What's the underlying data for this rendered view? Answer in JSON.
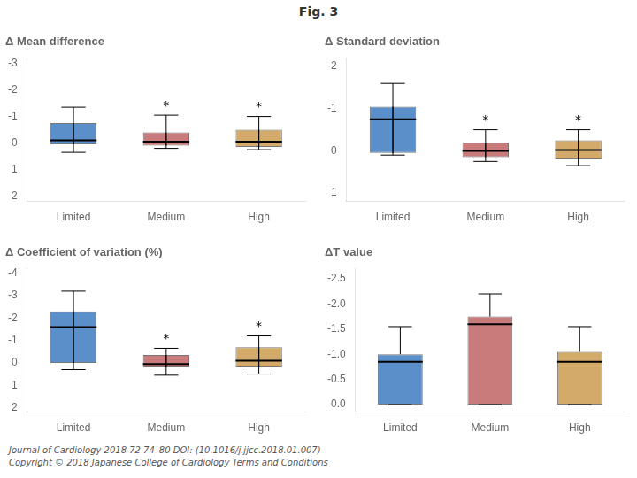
{
  "title": "Fig. 3",
  "footer": [
    "Journal of Cardiology 2018 72 74–80 DOI: (10.1016/j.jjcc.2018.01.007)",
    "Copyright © 2018 Japanese College of Cardiology Terms and Conditions"
  ],
  "chart_data": [
    {
      "type": "box",
      "title": "Δ Mean difference",
      "categories": [
        "Limited",
        "Medium",
        "High"
      ],
      "colors": [
        "#5b8fc9",
        "#c97b7b",
        "#d4aa6a"
      ],
      "q1": [
        -0.75,
        -0.4,
        -0.5
      ],
      "q3": [
        0.05,
        0.1,
        0.15
      ],
      "median": [
        -0.1,
        -0.05,
        -0.05
      ],
      "whisker_low": [
        0.35,
        0.2,
        0.25
      ],
      "whisker_high": [
        -1.35,
        -1.05,
        -1.0
      ],
      "annotations": [
        {
          "category": "Medium",
          "text": "*"
        },
        {
          "category": "High",
          "text": "*"
        }
      ],
      "ylim": [
        2.2,
        -3.2
      ],
      "yticks": [
        2,
        1,
        0,
        -1,
        -2,
        -3
      ],
      "grid": false
    },
    {
      "type": "box",
      "title": "Δ Standard deviation",
      "categories": [
        "Limited",
        "Medium",
        "High"
      ],
      "colors": [
        "#5b8fc9",
        "#c97b7b",
        "#d4aa6a"
      ],
      "q1": [
        -1.05,
        -0.2,
        -0.25
      ],
      "q3": [
        0.05,
        0.15,
        0.2
      ],
      "median": [
        -0.75,
        0.0,
        -0.02
      ],
      "whisker_low": [
        0.1,
        0.25,
        0.35
      ],
      "whisker_high": [
        -1.6,
        -0.5,
        -0.5
      ],
      "annotations": [
        {
          "category": "Medium",
          "text": "*"
        },
        {
          "category": "High",
          "text": "*"
        }
      ],
      "ylim": [
        1.2,
        -2.2
      ],
      "yticks": [
        1,
        0,
        -1,
        -2
      ],
      "grid": false
    },
    {
      "type": "box",
      "title": "Δ Coefficient of variation (%)",
      "categories": [
        "Limited",
        "Medium",
        "High"
      ],
      "colors": [
        "#5b8fc9",
        "#c97b7b",
        "#d4aa6a"
      ],
      "q1": [
        -2.3,
        -0.35,
        -0.7
      ],
      "q3": [
        0.0,
        0.2,
        0.2
      ],
      "median": [
        -1.6,
        0.05,
        -0.1
      ],
      "whisker_low": [
        0.3,
        0.55,
        0.5
      ],
      "whisker_high": [
        -3.2,
        -0.65,
        -1.2
      ],
      "annotations": [
        {
          "category": "Medium",
          "text": "*"
        },
        {
          "category": "High",
          "text": "*"
        }
      ],
      "ylim": [
        2.2,
        -4.2
      ],
      "yticks": [
        2,
        1,
        0,
        -1,
        -2,
        -3,
        -4
      ],
      "grid": false
    },
    {
      "type": "box",
      "title": "ΔT value",
      "categories": [
        "Limited",
        "Medium",
        "High"
      ],
      "colors": [
        "#5b8fc9",
        "#c97b7b",
        "#d4aa6a"
      ],
      "q1": [
        0.0,
        0.0,
        0.0
      ],
      "q3": [
        -1.0,
        -1.75,
        -1.05
      ],
      "median": [
        -0.85,
        -1.6,
        -0.85
      ],
      "whisker_low": [
        0.0,
        0.0,
        0.0
      ],
      "whisker_high": [
        -1.55,
        -2.2,
        -1.55
      ],
      "ylim": [
        0.15,
        -2.7
      ],
      "yticks": [
        {
          "value": 0.0,
          "label": "0.0"
        },
        -0.5,
        {
          "value": -1.0,
          "label": "-1.0"
        },
        -1.5,
        {
          "value": -2.0,
          "label": "-2.0"
        },
        -2.5
      ],
      "grid": false
    }
  ]
}
